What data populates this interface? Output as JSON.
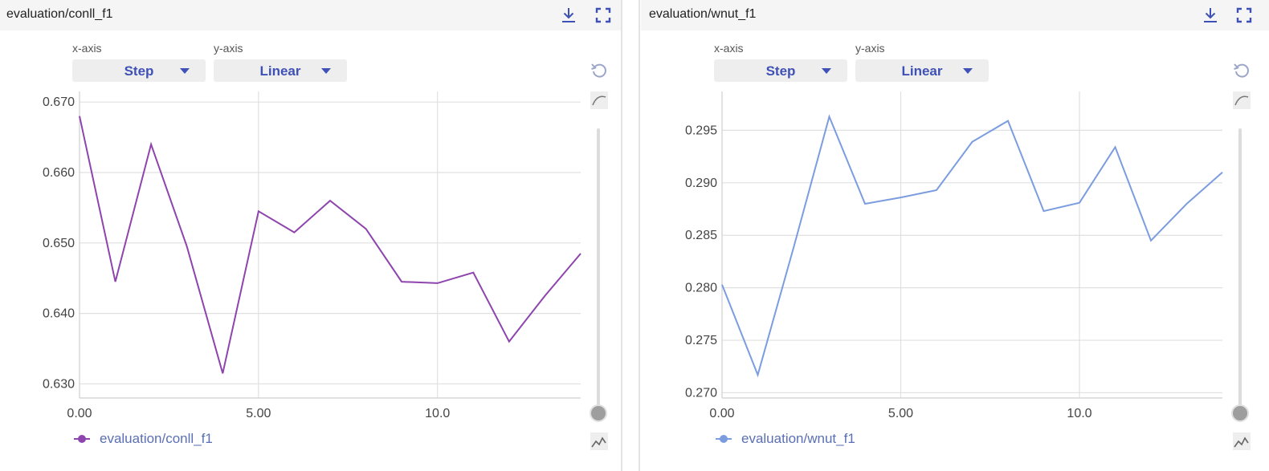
{
  "panels": [
    {
      "title": "evaluation/conll_f1",
      "xaxis": {
        "label": "x-axis",
        "selected": "Step"
      },
      "yaxis": {
        "label": "y-axis",
        "selected": "Linear"
      },
      "legend": "evaluation/conll_f1",
      "color": "#8e44ad",
      "icons": {
        "download": "download-icon",
        "fullscreen": "fullscreen-icon",
        "reset": "reset-zoom-icon",
        "smoothing": "smoothing-icon",
        "chart": "line-chart-icon"
      },
      "chart_data": {
        "type": "line",
        "x": [
          0,
          1,
          2,
          3,
          4,
          5,
          6,
          7,
          8,
          9,
          10,
          11,
          12,
          13,
          14
        ],
        "series": [
          {
            "name": "evaluation/conll_f1",
            "values": [
              0.668,
              0.6445,
              0.664,
              0.6495,
              0.6315,
              0.6545,
              0.6515,
              0.656,
              0.652,
              0.6445,
              0.6443,
              0.6458,
              0.636,
              0.6425,
              0.6485
            ]
          }
        ],
        "xlim": [
          0,
          14
        ],
        "ylim": [
          0.628,
          0.6715
        ],
        "xticks": [
          0,
          5,
          10
        ],
        "xtick_labels": [
          "0.00",
          "5.00",
          "10.0"
        ],
        "yticks": [
          0.63,
          0.64,
          0.65,
          0.66,
          0.67
        ],
        "ytick_labels": [
          "0.630",
          "0.640",
          "0.650",
          "0.660",
          "0.670"
        ],
        "grid": true
      }
    },
    {
      "title": "evaluation/wnut_f1",
      "xaxis": {
        "label": "x-axis",
        "selected": "Step"
      },
      "yaxis": {
        "label": "y-axis",
        "selected": "Linear"
      },
      "legend": "evaluation/wnut_f1",
      "color": "#7b9de0",
      "icons": {
        "download": "download-icon",
        "fullscreen": "fullscreen-icon",
        "reset": "reset-zoom-icon",
        "smoothing": "smoothing-icon",
        "chart": "line-chart-icon"
      },
      "chart_data": {
        "type": "line",
        "x": [
          0,
          1,
          2,
          3,
          4,
          5,
          6,
          7,
          8,
          9,
          10,
          11,
          12,
          13,
          14
        ],
        "series": [
          {
            "name": "evaluation/wnut_f1",
            "values": [
              0.2803,
              0.2717,
              0.2838,
              0.2963,
              0.288,
              0.2886,
              0.2893,
              0.2939,
              0.2959,
              0.2873,
              0.2881,
              0.2934,
              0.2845,
              0.288,
              0.291
            ]
          }
        ],
        "xlim": [
          0,
          14
        ],
        "ylim": [
          0.2695,
          0.2987
        ],
        "xticks": [
          0,
          5,
          10
        ],
        "xtick_labels": [
          "0.00",
          "5.00",
          "10.0"
        ],
        "yticks": [
          0.27,
          0.275,
          0.28,
          0.285,
          0.29,
          0.295
        ],
        "ytick_labels": [
          "0.270",
          "0.275",
          "0.280",
          "0.285",
          "0.290",
          "0.295"
        ],
        "grid": true
      }
    }
  ]
}
